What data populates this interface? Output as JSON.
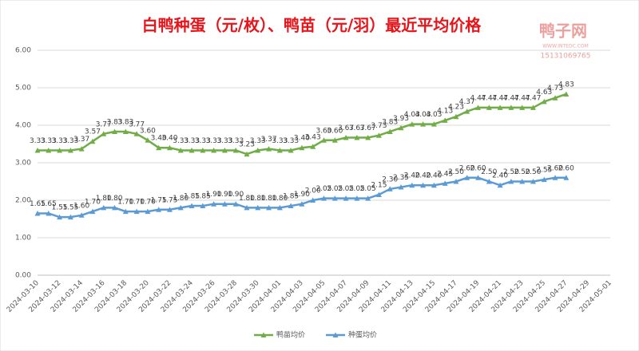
{
  "chart_data": {
    "type": "line",
    "title": "白鸭种蛋（元/枚）、鸭苗（元/羽）最近平均价格",
    "watermark": {
      "name": "鸭子网",
      "site": "WWW.INTEDC.COM",
      "phone": "15131069765"
    },
    "categories": [
      "2024-03-10",
      null,
      "2024-03-12",
      null,
      "2024-03-14",
      null,
      "2024-03-16",
      null,
      "2024-03-18",
      null,
      "2024-03-20",
      null,
      "2024-03-22",
      null,
      "2024-03-24",
      null,
      "2024-03-26",
      null,
      "2024-03-28",
      null,
      "2024-03-30",
      null,
      "2024-04-01",
      null,
      "2024-04-03",
      null,
      "2024-04-05",
      null,
      "2024-04-07",
      null,
      "2024-04-09",
      null,
      "2024-04-11",
      null,
      "2024-04-13",
      null,
      "2024-04-15",
      null,
      "2024-04-17",
      null,
      "2024-04-19",
      null,
      "2024-04-21",
      null,
      "2024-04-23",
      null,
      "2024-04-25",
      null,
      "2024-04-27",
      null,
      "2024-04-29",
      null,
      "2024-05-01"
    ],
    "series": [
      {
        "name": "鸭苗均价",
        "color": "#70ad47",
        "values": [
          3.33,
          3.33,
          3.33,
          3.33,
          3.37,
          3.57,
          3.77,
          3.83,
          3.83,
          3.77,
          3.6,
          3.4,
          3.4,
          3.33,
          3.33,
          3.33,
          3.33,
          3.33,
          3.33,
          3.23,
          3.33,
          3.37,
          3.33,
          3.33,
          3.4,
          3.43,
          3.6,
          3.6,
          3.67,
          3.67,
          3.67,
          3.73,
          3.83,
          3.93,
          4.03,
          4.03,
          4.03,
          4.13,
          4.23,
          4.37,
          4.47,
          4.47,
          4.47,
          4.47,
          4.47,
          4.47,
          4.63,
          4.73,
          4.83,
          null,
          null,
          null,
          null
        ],
        "value_labels": [
          "3.33",
          "3.33",
          "3.33",
          "3.33",
          "3.37",
          "3.57",
          "3.77",
          "3.83",
          "3.83",
          "3.77",
          "3.60",
          "3.40",
          "3.40",
          "3.33",
          "3.33",
          "3.33",
          "3.33",
          "3.33",
          "3.33",
          "3.23",
          "3.33",
          "3.37",
          "3.33",
          "3.33",
          "3.40",
          "3.43",
          "3.60",
          "3.60",
          "3.67",
          "3.67",
          "3.67",
          "3.73",
          "3.83",
          "3.93",
          "4.03",
          "4.03",
          "4.03",
          "4.13",
          "4.23",
          "4.37",
          "4.47",
          "4.47",
          "4.47",
          "4.47",
          "4.47",
          "4.47",
          "4.63",
          "4.73",
          "4.83",
          null,
          null,
          null,
          null
        ]
      },
      {
        "name": "种蛋均价",
        "color": "#5b9bd5",
        "values": [
          1.65,
          1.65,
          1.55,
          1.55,
          1.6,
          1.7,
          1.8,
          1.8,
          1.7,
          1.7,
          1.7,
          1.75,
          1.75,
          1.8,
          1.85,
          1.85,
          1.9,
          1.9,
          1.9,
          1.8,
          1.8,
          1.8,
          1.8,
          1.85,
          1.9,
          2.0,
          2.05,
          2.05,
          2.05,
          2.05,
          2.05,
          2.15,
          2.3,
          2.35,
          2.4,
          2.4,
          2.4,
          2.45,
          2.5,
          2.6,
          2.6,
          2.5,
          2.4,
          2.5,
          2.5,
          2.5,
          2.55,
          2.6,
          2.6,
          null,
          null,
          null,
          null
        ],
        "value_labels": [
          "1.65",
          "1.65",
          "1.55",
          "1.55",
          "1.60",
          "1.70",
          "1.80",
          "1.80",
          "1.70",
          "1.70",
          "1.70",
          "1.75",
          "1.75",
          "1.80",
          "1.85",
          "1.85",
          "1.90",
          "1.90",
          "1.90",
          "1.80",
          "1.80",
          "1.80",
          "1.80",
          "1.85",
          "1.90",
          "2.00",
          "2.05",
          "2.05",
          "2.05",
          "2.05",
          "2.05",
          "2.15",
          "2.30",
          "2.35",
          "2.40",
          "2.40",
          "2.40",
          "2.45",
          "2.50",
          "2.60",
          "2.60",
          "2.50",
          "2.40",
          "2.50",
          "2.50",
          "2.50",
          "2.55",
          "2.60",
          "2.60",
          null,
          null,
          null,
          null
        ]
      }
    ],
    "ylim": [
      0,
      6
    ],
    "yticks": [
      {
        "value": 0,
        "label": "0.00"
      },
      {
        "value": 1,
        "label": "1.00"
      },
      {
        "value": 2,
        "label": "2.00"
      },
      {
        "value": 3,
        "label": "3.00"
      },
      {
        "value": 4,
        "label": "4.00"
      },
      {
        "value": 5,
        "label": "5.00"
      },
      {
        "value": 6,
        "label": "6.00"
      }
    ],
    "grid": true,
    "legend": "bottom"
  }
}
